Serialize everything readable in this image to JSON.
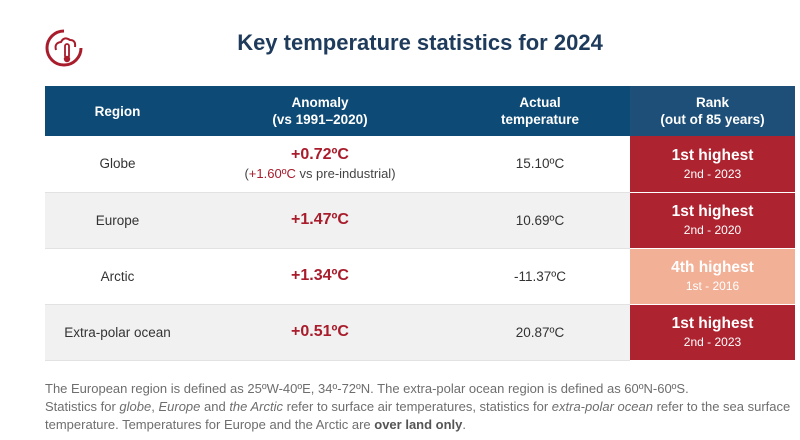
{
  "title": "Key temperature statistics for 2024",
  "brand_color": "#a81c2b",
  "header_color": "#0d4a75",
  "table": {
    "headers": [
      {
        "line1": "Region",
        "line2": ""
      },
      {
        "line1": "Anomaly",
        "line2": "(vs 1991–2020)"
      },
      {
        "line1": "Actual",
        "line2": "temperature"
      },
      {
        "line1": "Rank",
        "line2": "(out of 85 years)"
      }
    ],
    "rows": [
      {
        "region": "Globe",
        "anomaly": "+0.72ºC",
        "anomaly_sub_prefix": "(",
        "anomaly_sub_value": "+1.60ºC",
        "anomaly_sub_suffix": " vs pre-industrial)",
        "actual": "15.10ºC",
        "rank": "1st highest",
        "rank_sub": "2nd - 2023",
        "rank_color": "#ae2330"
      },
      {
        "region": "Europe",
        "anomaly": "+1.47ºC",
        "actual": "10.69ºC",
        "rank": "1st highest",
        "rank_sub": "2nd - 2020",
        "rank_color": "#ae2330"
      },
      {
        "region": "Arctic",
        "anomaly": "+1.34ºC",
        "actual": "-11.37ºC",
        "rank": "4th highest",
        "rank_sub": "1st - 2016",
        "rank_color": "#f2b096"
      },
      {
        "region": "Extra-polar ocean",
        "anomaly": "+0.51ºC",
        "actual": "20.87ºC",
        "rank": "1st highest",
        "rank_sub": "2nd - 2023",
        "rank_color": "#ae2330"
      }
    ]
  },
  "notes": {
    "line1": "The European region is defined as 25ºW-40ºE, 34º-72ºN. The extra-polar ocean region is defined as 60ºN-60ºS.",
    "line2_a": "Statistics for ",
    "line2_globe": "globe",
    "line2_b": ", ",
    "line2_europe": "Europe",
    "line2_c": " and ",
    "line2_arctic": "the Arctic",
    "line2_d": " refer to surface air temperatures, statistics for ",
    "line2_ocean": "extra-polar ocean",
    "line2_e": " refer to the sea surface",
    "line3_a": "temperature. Temperatures for Europe and the Arctic are ",
    "line3_bold": "over land only",
    "line3_b": "."
  }
}
